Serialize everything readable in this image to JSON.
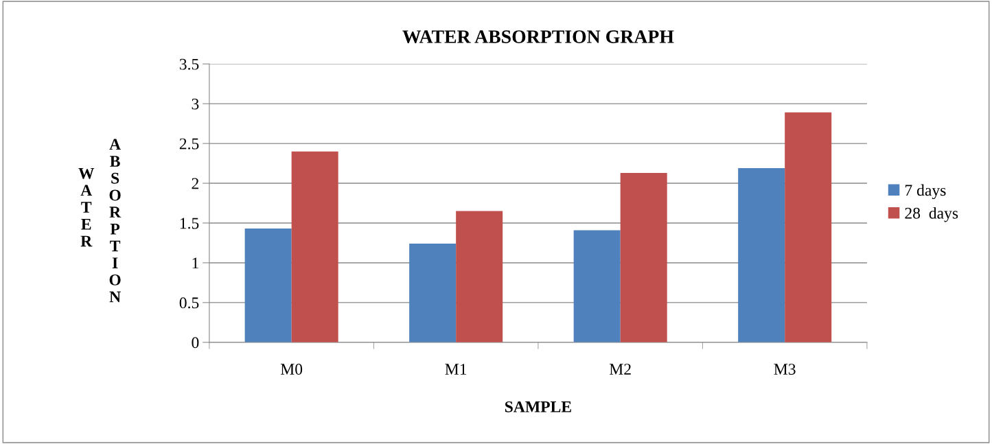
{
  "chart_data": {
    "type": "bar",
    "title": "WATER ABSORPTION GRAPH",
    "xlabel": "SAMPLE",
    "ylabel": "WATER ABSORPTION",
    "categories": [
      "M0",
      "M1",
      "M2",
      "M3"
    ],
    "series": [
      {
        "name": "7 days",
        "color": "#4f81bd",
        "values": [
          1.43,
          1.24,
          1.41,
          2.19
        ]
      },
      {
        "name": "28  days",
        "color": "#c0504d",
        "values": [
          2.4,
          1.65,
          2.13,
          2.89
        ]
      }
    ],
    "ylim": [
      0,
      3.5
    ],
    "yticks": [
      0,
      0.5,
      1,
      1.5,
      2,
      2.5,
      3,
      3.5
    ],
    "grid": "y",
    "legend": "right"
  }
}
